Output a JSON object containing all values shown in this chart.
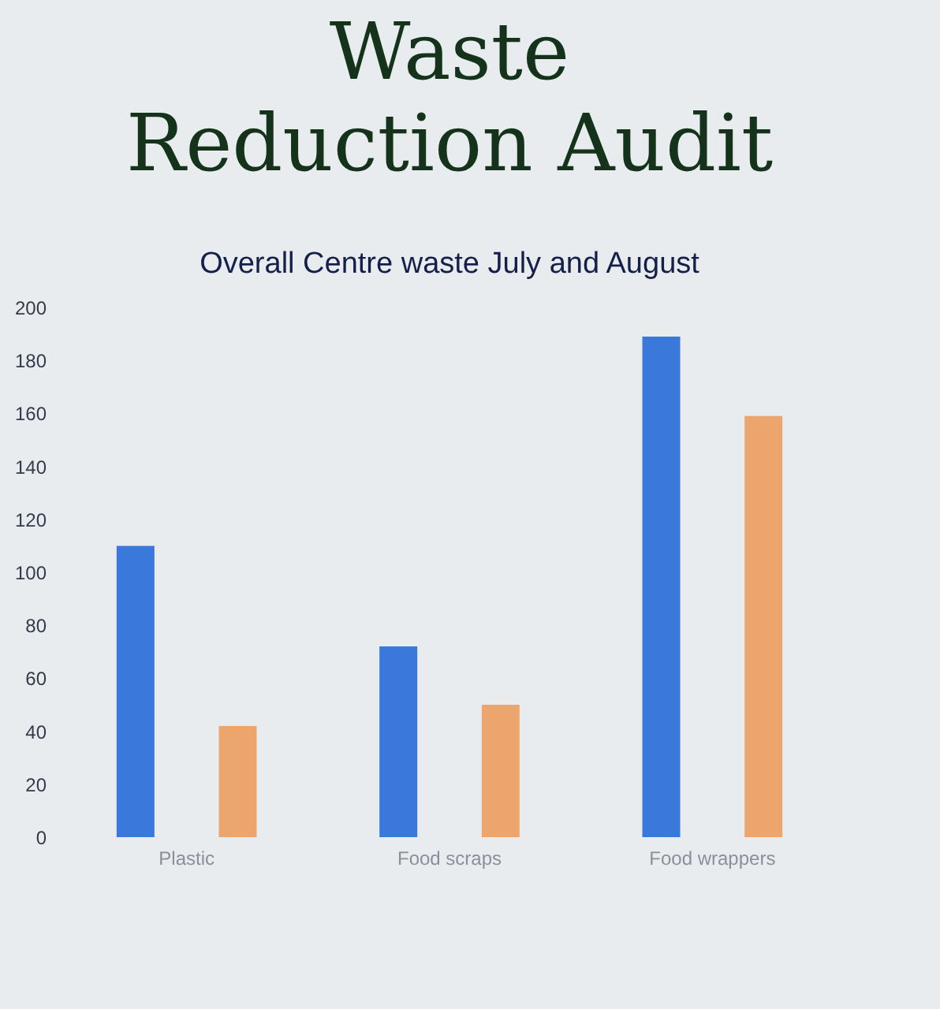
{
  "chart_data": {
    "type": "bar",
    "title": "Waste Reduction Audit",
    "subtitle": "Overall Centre waste July and August",
    "categories": [
      "Plastic",
      "Food scraps",
      "Food wrappers"
    ],
    "series": [
      {
        "color": "#3a78dc",
        "values": [
          110,
          72,
          189
        ]
      },
      {
        "color": "#eda56e",
        "values": [
          42,
          50,
          159
        ]
      }
    ],
    "ylim": [
      0,
      200
    ],
    "yticks": [
      0,
      20,
      40,
      60,
      80,
      100,
      120,
      140,
      160,
      180,
      200
    ],
    "grid": false,
    "legend": false
  }
}
